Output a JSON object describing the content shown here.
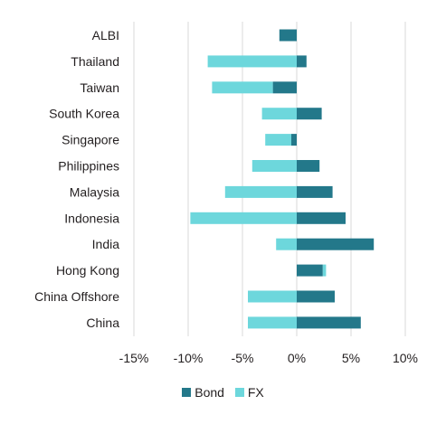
{
  "chart_data": {
    "type": "bar",
    "orientation": "horizontal",
    "stacked": true,
    "categories": [
      "ALBI",
      "Thailand",
      "Taiwan",
      "South Korea",
      "Singapore",
      "Philippines",
      "Malaysia",
      "Indonesia",
      "India",
      "Hong Kong",
      "China Offshore",
      "China"
    ],
    "series": [
      {
        "name": "Bond",
        "color": "#23788a",
        "values": [
          -1.6,
          0.9,
          -2.2,
          2.3,
          -0.5,
          2.1,
          3.3,
          4.5,
          7.1,
          2.4,
          3.5,
          5.9
        ]
      },
      {
        "name": "FX",
        "color": "#6dd7dc",
        "values": [
          0.0,
          -8.2,
          -5.6,
          -3.2,
          -2.4,
          -4.1,
          -6.6,
          -9.8,
          -1.9,
          0.3,
          -4.5,
          -4.5
        ]
      }
    ],
    "xlim": [
      -15,
      10
    ],
    "xticks": [
      "-15%",
      "-10%",
      "-5%",
      "0%",
      "5%",
      "10%"
    ],
    "grid": "vertical",
    "legend": "bottom"
  }
}
